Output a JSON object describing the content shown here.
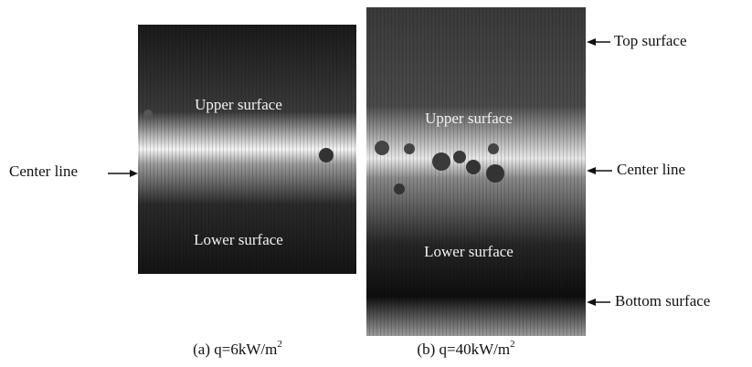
{
  "panels": [
    {
      "labels": {
        "upper": "Upper surface",
        "lower": "Lower surface",
        "center": "Center line"
      },
      "caption": {
        "text": "(a) q=6kW/m",
        "sup": "2"
      }
    },
    {
      "labels": {
        "upper": "Upper surface",
        "lower": "Lower surface",
        "center": "Center line",
        "top": "Top surface",
        "bottom": "Bottom surface"
      },
      "caption": {
        "text": "(b) q=40kW/m",
        "sup": "2"
      }
    }
  ]
}
